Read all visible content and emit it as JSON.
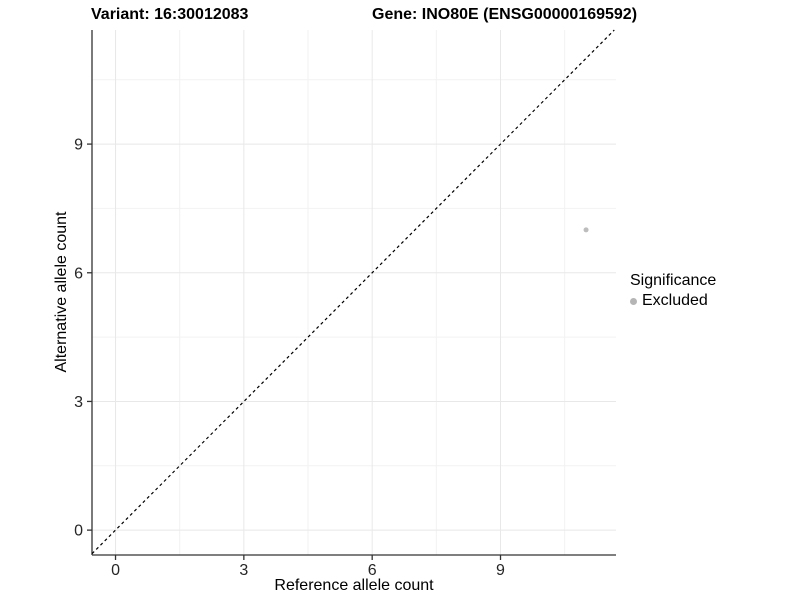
{
  "chart_data": {
    "type": "scatter",
    "title_left": "Variant: 16:30012083",
    "title_right": "Gene: INO80E (ENSG00000169592)",
    "xlabel": "Reference allele count",
    "ylabel": "Alternative allele count",
    "xlim": [
      -0.55,
      11.7
    ],
    "ylim": [
      -0.58,
      11.66
    ],
    "x_ticks": [
      0,
      3,
      6,
      9
    ],
    "y_ticks": [
      0,
      3,
      6,
      9
    ],
    "x_minor_ticks": [
      1.5,
      4.5,
      7.5,
      10.5
    ],
    "y_minor_ticks": [
      1.5,
      4.5,
      7.5,
      10.5
    ],
    "grid": true,
    "points": [
      {
        "x": 11,
        "y": 7,
        "significance": "Excluded",
        "color": "#bdbdbd",
        "radius": 2.5
      }
    ],
    "identity_line": {
      "slope": 1,
      "intercept": 0,
      "style": "dashed",
      "color": "#000000"
    },
    "legend": {
      "title": "Significance",
      "position": "right",
      "items": [
        {
          "label": "Excluded",
          "color": "#b5b5b5"
        }
      ]
    },
    "colors": {
      "background": "#ffffff",
      "grid_major": "#e8e8e8",
      "grid_minor": "#f2f2f2",
      "axis_line": "#333333",
      "tick_text": "#262626"
    }
  }
}
